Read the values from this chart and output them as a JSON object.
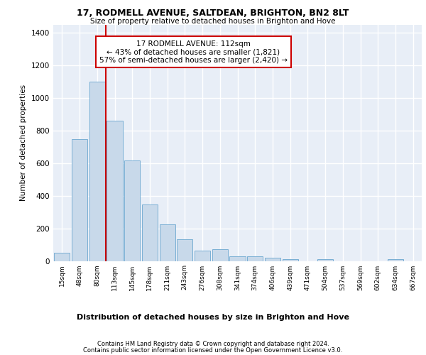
{
  "title_line1": "17, RODMELL AVENUE, SALTDEAN, BRIGHTON, BN2 8LT",
  "title_line2": "Size of property relative to detached houses in Brighton and Hove",
  "xlabel": "Distribution of detached houses by size in Brighton and Hove",
  "ylabel": "Number of detached properties",
  "footer_line1": "Contains HM Land Registry data © Crown copyright and database right 2024.",
  "footer_line2": "Contains public sector information licensed under the Open Government Licence v3.0.",
  "bar_labels": [
    "15sqm",
    "48sqm",
    "80sqm",
    "113sqm",
    "145sqm",
    "178sqm",
    "211sqm",
    "243sqm",
    "276sqm",
    "308sqm",
    "341sqm",
    "374sqm",
    "406sqm",
    "439sqm",
    "471sqm",
    "504sqm",
    "537sqm",
    "569sqm",
    "602sqm",
    "634sqm",
    "667sqm"
  ],
  "bar_values": [
    50,
    750,
    1100,
    860,
    615,
    345,
    225,
    135,
    65,
    70,
    30,
    30,
    20,
    12,
    0,
    10,
    0,
    0,
    0,
    10,
    0
  ],
  "bar_color": "#c8d9ea",
  "bar_edge_color": "#7aafd4",
  "bg_color": "#e8eef7",
  "grid_color": "#ffffff",
  "annotation_text": "17 RODMELL AVENUE: 112sqm\n← 43% of detached houses are smaller (1,821)\n57% of semi-detached houses are larger (2,420) →",
  "vline_color": "#cc0000",
  "annotation_box_edge": "#cc0000",
  "ylim": [
    0,
    1450
  ],
  "yticks": [
    0,
    200,
    400,
    600,
    800,
    1000,
    1200,
    1400
  ]
}
